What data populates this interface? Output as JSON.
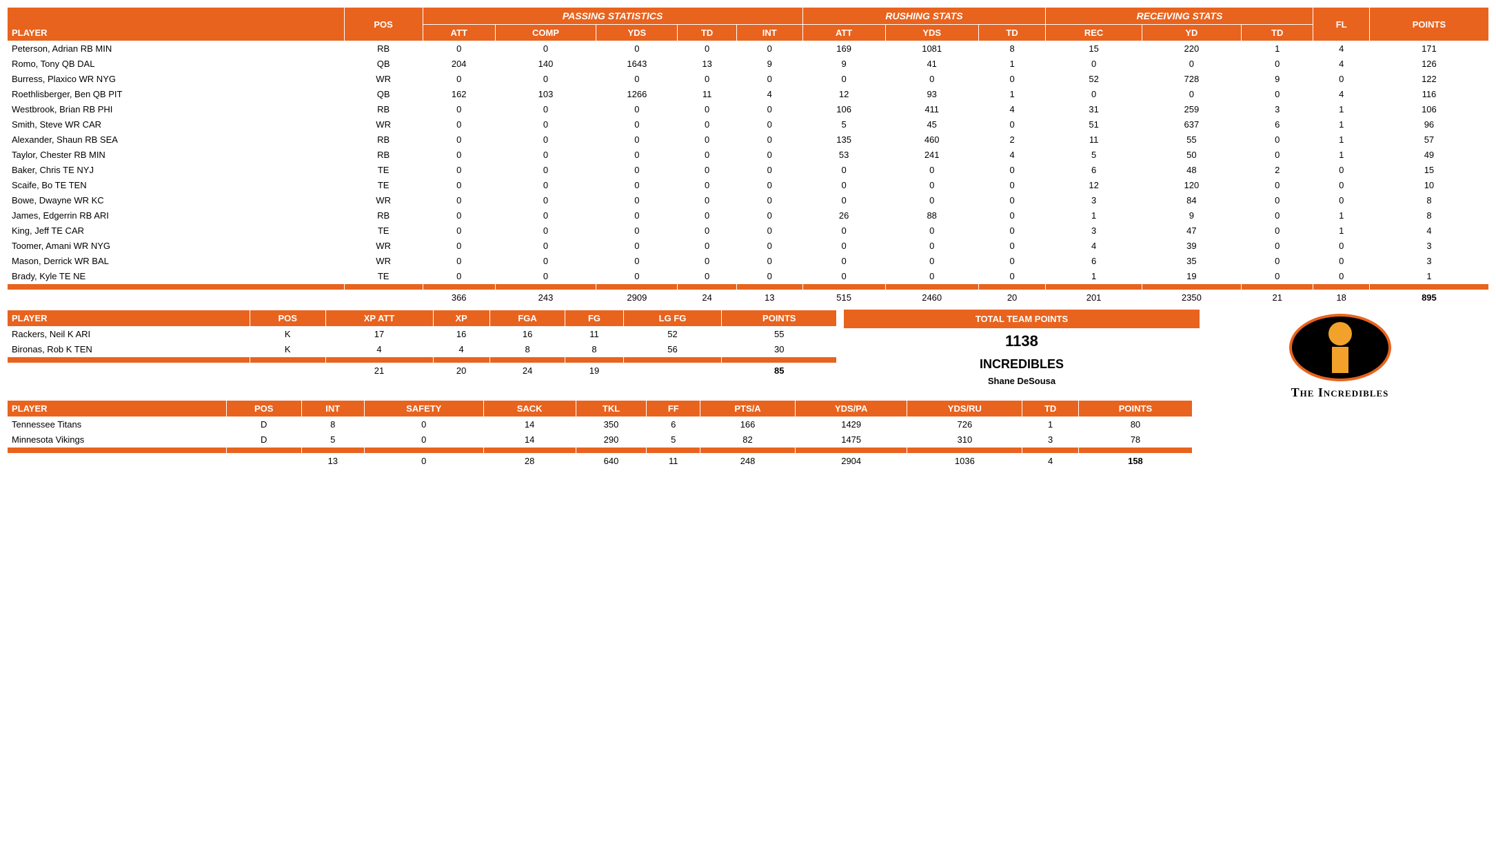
{
  "colors": {
    "accent": "#e8631e",
    "text": "#000000",
    "bg": "#ffffff"
  },
  "main": {
    "groups": [
      "PASSING STATISTICS",
      "RUSHING STATS",
      "RECEIVING STATS"
    ],
    "columns": [
      "PLAYER",
      "POS",
      "ATT",
      "COMP",
      "YDS",
      "TD",
      "INT",
      "ATT",
      "YDS",
      "TD",
      "REC",
      "YD",
      "TD",
      "FL",
      "POINTS"
    ],
    "rows": [
      [
        "Peterson, Adrian RB MIN",
        "RB",
        "0",
        "0",
        "0",
        "0",
        "0",
        "169",
        "1081",
        "8",
        "15",
        "220",
        "1",
        "4",
        "171"
      ],
      [
        "Romo, Tony QB DAL",
        "QB",
        "204",
        "140",
        "1643",
        "13",
        "9",
        "9",
        "41",
        "1",
        "0",
        "0",
        "0",
        "4",
        "126"
      ],
      [
        "Burress, Plaxico WR NYG",
        "WR",
        "0",
        "0",
        "0",
        "0",
        "0",
        "0",
        "0",
        "0",
        "52",
        "728",
        "9",
        "0",
        "122"
      ],
      [
        "Roethlisberger, Ben QB PIT",
        "QB",
        "162",
        "103",
        "1266",
        "11",
        "4",
        "12",
        "93",
        "1",
        "0",
        "0",
        "0",
        "4",
        "116"
      ],
      [
        "Westbrook, Brian RB PHI",
        "RB",
        "0",
        "0",
        "0",
        "0",
        "0",
        "106",
        "411",
        "4",
        "31",
        "259",
        "3",
        "1",
        "106"
      ],
      [
        "Smith, Steve WR CAR",
        "WR",
        "0",
        "0",
        "0",
        "0",
        "0",
        "5",
        "45",
        "0",
        "51",
        "637",
        "6",
        "1",
        "96"
      ],
      [
        "Alexander, Shaun RB SEA",
        "RB",
        "0",
        "0",
        "0",
        "0",
        "0",
        "135",
        "460",
        "2",
        "11",
        "55",
        "0",
        "1",
        "57"
      ],
      [
        "Taylor, Chester RB MIN",
        "RB",
        "0",
        "0",
        "0",
        "0",
        "0",
        "53",
        "241",
        "4",
        "5",
        "50",
        "0",
        "1",
        "49"
      ],
      [
        "Baker, Chris TE NYJ",
        "TE",
        "0",
        "0",
        "0",
        "0",
        "0",
        "0",
        "0",
        "0",
        "6",
        "48",
        "2",
        "0",
        "15"
      ],
      [
        "Scaife, Bo TE TEN",
        "TE",
        "0",
        "0",
        "0",
        "0",
        "0",
        "0",
        "0",
        "0",
        "12",
        "120",
        "0",
        "0",
        "10"
      ],
      [
        "Bowe, Dwayne WR KC",
        "WR",
        "0",
        "0",
        "0",
        "0",
        "0",
        "0",
        "0",
        "0",
        "3",
        "84",
        "0",
        "0",
        "8"
      ],
      [
        "James, Edgerrin RB ARI",
        "RB",
        "0",
        "0",
        "0",
        "0",
        "0",
        "26",
        "88",
        "0",
        "1",
        "9",
        "0",
        "1",
        "8"
      ],
      [
        "King, Jeff TE CAR",
        "TE",
        "0",
        "0",
        "0",
        "0",
        "0",
        "0",
        "0",
        "0",
        "3",
        "47",
        "0",
        "1",
        "4"
      ],
      [
        "Toomer, Amani WR NYG",
        "WR",
        "0",
        "0",
        "0",
        "0",
        "0",
        "0",
        "0",
        "0",
        "4",
        "39",
        "0",
        "0",
        "3"
      ],
      [
        "Mason, Derrick WR BAL",
        "WR",
        "0",
        "0",
        "0",
        "0",
        "0",
        "0",
        "0",
        "0",
        "6",
        "35",
        "0",
        "0",
        "3"
      ],
      [
        "Brady, Kyle TE NE",
        "TE",
        "0",
        "0",
        "0",
        "0",
        "0",
        "0",
        "0",
        "0",
        "1",
        "19",
        "0",
        "0",
        "1"
      ]
    ],
    "totals": [
      "",
      "",
      "366",
      "243",
      "2909",
      "24",
      "13",
      "515",
      "2460",
      "20",
      "201",
      "2350",
      "21",
      "18",
      "895"
    ]
  },
  "kickers": {
    "columns": [
      "PLAYER",
      "POS",
      "XP ATT",
      "XP",
      "FGA",
      "FG",
      "LG FG",
      "POINTS"
    ],
    "rows": [
      [
        "Rackers, Neil K ARI",
        "K",
        "17",
        "16",
        "16",
        "11",
        "52",
        "55"
      ],
      [
        "Bironas, Rob K TEN",
        "K",
        "4",
        "4",
        "8",
        "8",
        "56",
        "30"
      ]
    ],
    "totals": [
      "",
      "",
      "21",
      "20",
      "24",
      "19",
      "",
      "85"
    ]
  },
  "defense": {
    "columns": [
      "PLAYER",
      "POS",
      "INT",
      "SAFETY",
      "SACK",
      "TKL",
      "FF",
      "PTS/A",
      "YDS/PA",
      "YDS/RU",
      "TD",
      "POINTS"
    ],
    "rows": [
      [
        "Tennessee Titans",
        "D",
        "8",
        "0",
        "14",
        "350",
        "6",
        "166",
        "1429",
        "726",
        "1",
        "80"
      ],
      [
        "Minnesota Vikings",
        "D",
        "5",
        "0",
        "14",
        "290",
        "5",
        "82",
        "1475",
        "310",
        "3",
        "78"
      ]
    ],
    "totals": [
      "",
      "",
      "13",
      "0",
      "28",
      "640",
      "11",
      "248",
      "2904",
      "1036",
      "4",
      "158"
    ]
  },
  "team": {
    "heading": "TOTAL TEAM POINTS",
    "points": "1138",
    "name": "INCREDIBLES",
    "owner": "Shane DeSousa",
    "logo_text": "The Incredibles"
  }
}
